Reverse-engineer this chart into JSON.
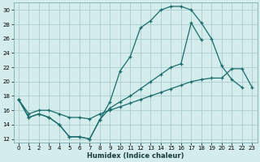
{
  "xlabel": "Humidex (Indice chaleur)",
  "bg_color": "#d4ecec",
  "grid_color": "#aacece",
  "line_color": "#1a6b6b",
  "xlim": [
    -0.5,
    23.5
  ],
  "ylim": [
    11.5,
    31.0
  ],
  "xticks": [
    0,
    1,
    2,
    3,
    4,
    5,
    6,
    7,
    8,
    9,
    10,
    11,
    12,
    13,
    14,
    15,
    16,
    17,
    18,
    19,
    20,
    21,
    22,
    23
  ],
  "yticks": [
    12,
    14,
    16,
    18,
    20,
    22,
    24,
    26,
    28,
    30
  ],
  "line1_x": [
    0,
    1,
    2,
    3,
    4,
    5,
    6,
    7,
    8,
    9,
    10,
    11,
    12,
    13,
    14,
    15,
    16,
    17,
    18,
    19,
    20,
    21,
    22,
    23
  ],
  "line1_y": [
    17.5,
    15.0,
    15.5,
    15.0,
    14.0,
    12.3,
    12.3,
    12.0,
    14.7,
    17.2,
    21.5,
    23.5,
    27.5,
    28.5,
    30.0,
    30.5,
    30.5,
    30.0,
    28.2,
    26.0,
    22.2,
    20.3,
    19.2,
    null
  ],
  "line2_x": [
    0,
    1,
    2,
    3,
    4,
    5,
    6,
    7,
    8,
    9,
    10,
    11,
    12,
    13,
    14,
    15,
    16,
    17,
    18,
    19,
    20,
    21,
    22,
    23
  ],
  "line2_y": [
    17.5,
    15.0,
    15.5,
    15.0,
    14.0,
    12.3,
    12.3,
    12.0,
    14.7,
    16.3,
    17.2,
    18.0,
    19.0,
    20.0,
    21.0,
    22.0,
    22.5,
    28.2,
    25.8,
    null,
    null,
    null,
    null,
    null
  ],
  "line3_x": [
    0,
    1,
    2,
    3,
    4,
    5,
    6,
    7,
    8,
    9,
    10,
    11,
    12,
    13,
    14,
    15,
    16,
    17,
    18,
    19,
    20,
    21,
    22,
    23
  ],
  "line3_y": [
    17.5,
    15.5,
    16.0,
    16.0,
    15.5,
    15.0,
    15.0,
    14.8,
    15.5,
    16.0,
    16.5,
    17.0,
    17.5,
    18.0,
    18.5,
    19.0,
    19.5,
    20.0,
    20.3,
    20.5,
    20.5,
    21.8,
    21.8,
    19.2
  ]
}
